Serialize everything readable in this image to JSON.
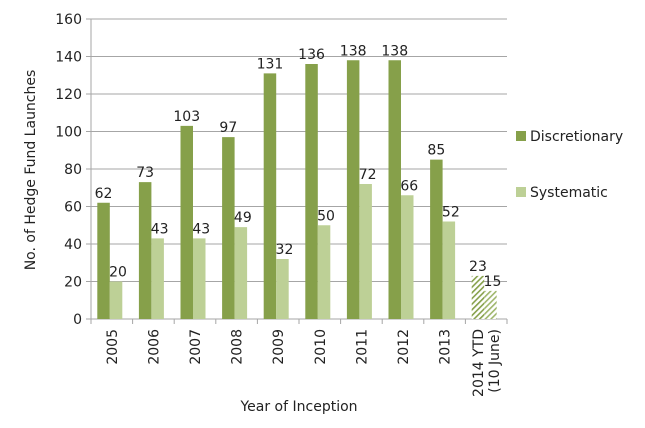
{
  "chart_data": {
    "type": "bar",
    "title": "",
    "xlabel": "Year of Inception",
    "ylabel": "No. of Hedge Fund Launches",
    "ylim": [
      0,
      160
    ],
    "yticks": [
      0,
      20,
      40,
      60,
      80,
      100,
      120,
      140,
      160
    ],
    "grid": true,
    "legend_position": "right",
    "categories": [
      [
        "2005"
      ],
      [
        "2006"
      ],
      [
        "2007"
      ],
      [
        "2008"
      ],
      [
        "2009"
      ],
      [
        "2010"
      ],
      [
        "2011"
      ],
      [
        "2012"
      ],
      [
        "2013"
      ],
      [
        "2014 YTD",
        "(10 June)"
      ]
    ],
    "series": [
      {
        "name": "Discretionary",
        "color": "#86a04a",
        "values": [
          62,
          73,
          103,
          97,
          131,
          136,
          138,
          138,
          85,
          23
        ]
      },
      {
        "name": "Systematic",
        "color": "#bdd096",
        "values": [
          20,
          43,
          43,
          49,
          32,
          50,
          72,
          66,
          52,
          15
        ]
      }
    ],
    "hatched_categories": [
      "2014 YTD"
    ]
  }
}
